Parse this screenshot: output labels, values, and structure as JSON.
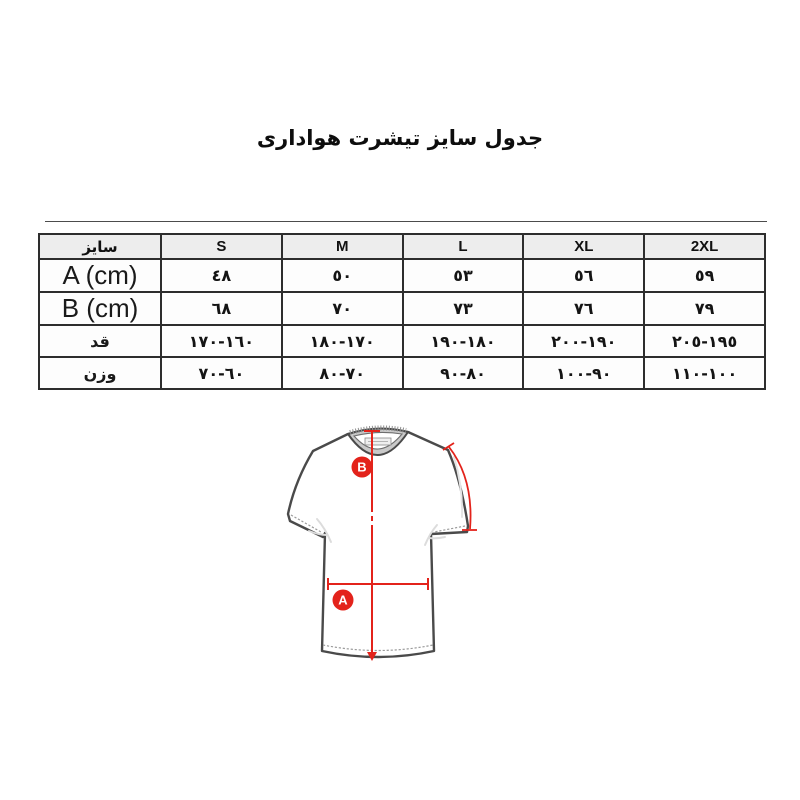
{
  "page": {
    "title": "جدول سایز تیشرت هواداری"
  },
  "size_table": {
    "columns": [
      "سایز",
      "S",
      "M",
      "L",
      "XL",
      "2XL"
    ],
    "rows": [
      {
        "label": "A (cm)",
        "latin": true,
        "values": [
          "٤٨",
          "٥٠",
          "٥٣",
          "٥٦",
          "٥٩"
        ]
      },
      {
        "label": "B (cm)",
        "latin": true,
        "values": [
          "٦٨",
          "٧٠",
          "٧٣",
          "٧٦",
          "٧٩"
        ]
      },
      {
        "label": "قد",
        "latin": false,
        "values": [
          "١٦٠-١٧٠",
          "١٧٠-١٨٠",
          "١٨٠-١٩٠",
          "١٩٠-٢٠٠",
          "١٩٥-٢٠٥"
        ]
      },
      {
        "label": "وزن",
        "latin": false,
        "values": [
          "٦٠-٧٠",
          "٧٠-٨٠",
          "٨٠-٩٠",
          "٩٠-١٠٠",
          "١٠٠-١١٠"
        ]
      }
    ]
  },
  "diagram": {
    "marker_a": "A",
    "marker_b": "B",
    "accent_red": "#e3231b",
    "outline_gray": "#4a4a4a",
    "collar_gray": "#c9c9c9"
  }
}
